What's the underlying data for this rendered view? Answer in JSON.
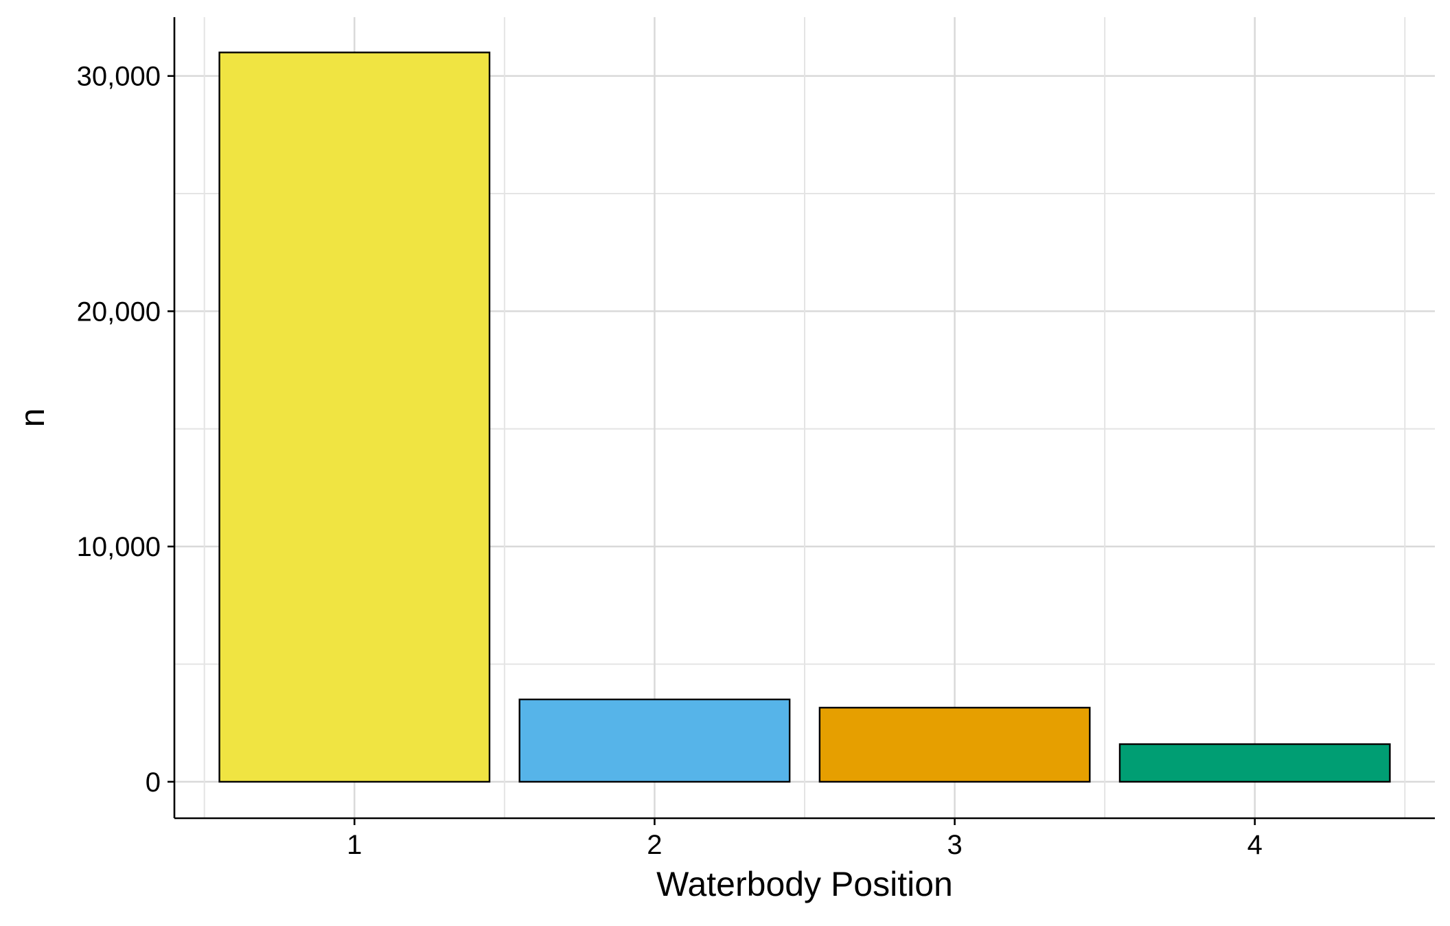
{
  "chart_data": {
    "type": "bar",
    "title": "",
    "xlabel": "Waterbody Position",
    "ylabel": "n",
    "categories": [
      "1",
      "2",
      "3",
      "4"
    ],
    "values": [
      31000,
      3500,
      3150,
      1600
    ],
    "colors": [
      "#F0E442",
      "#56B4E9",
      "#E69F00",
      "#009E73"
    ],
    "bar_outline_color": "#000000",
    "ylim": [
      -1550,
      32500
    ],
    "yticks": [
      0,
      10000,
      20000,
      30000
    ],
    "ytick_labels": [
      "0",
      "10,000",
      "20,000",
      "30,000"
    ],
    "grid": true,
    "legend": "none"
  }
}
